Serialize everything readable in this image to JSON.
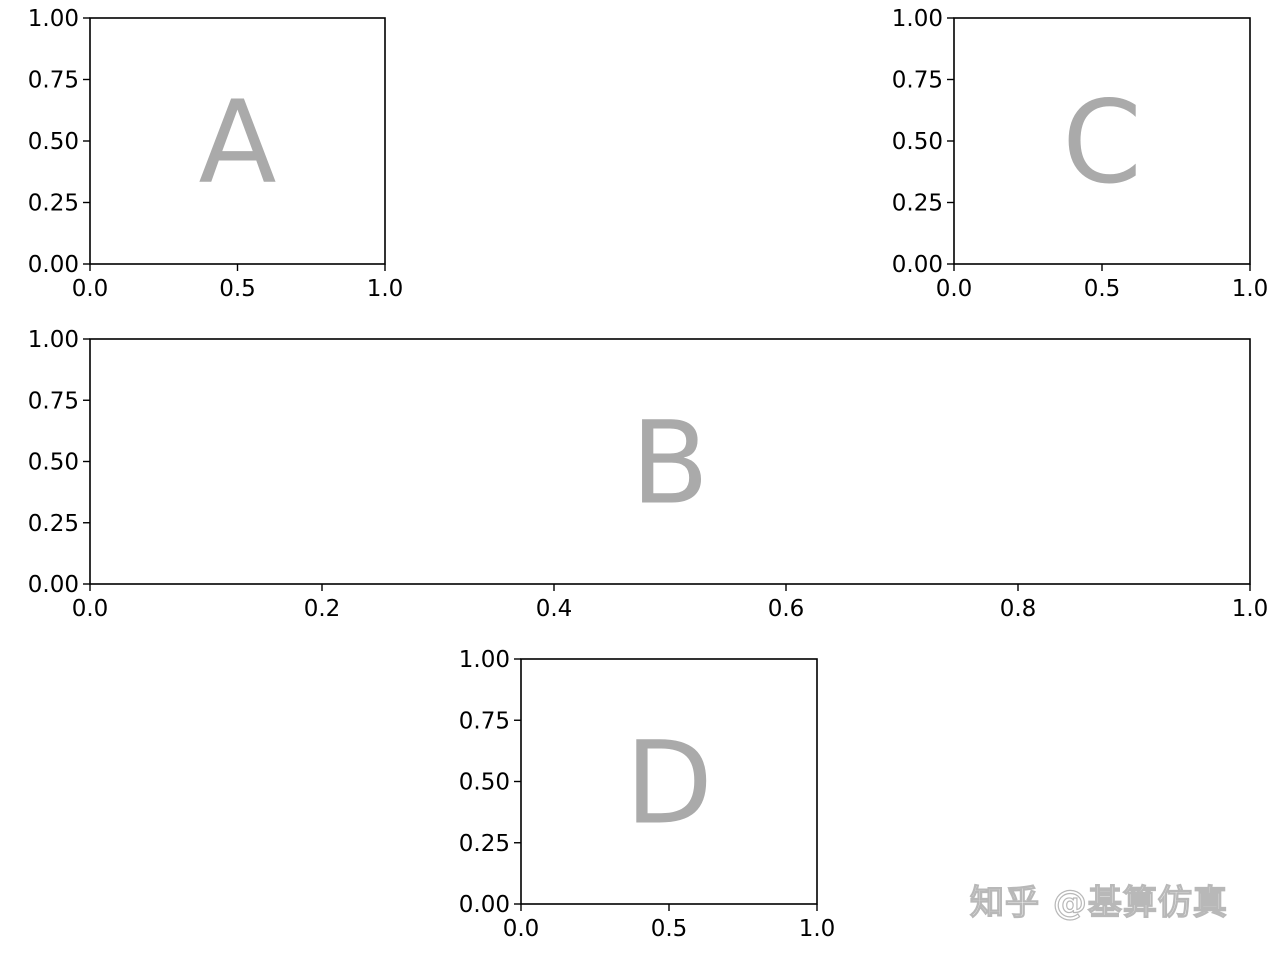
{
  "watermark": "知乎 @基算仿真",
  "colors": {
    "axis": "#000000",
    "panel_letter": "#aaaaaa",
    "background": "#ffffff"
  },
  "chart_data": [
    {
      "type": "blank",
      "panel_label": "A",
      "xlim": [
        0.0,
        1.0
      ],
      "ylim": [
        0.0,
        1.0
      ],
      "xticks": [
        "0.0",
        "0.5",
        "1.0"
      ],
      "yticks": [
        "0.00",
        "0.25",
        "0.50",
        "0.75",
        "1.00"
      ],
      "grid": false
    },
    {
      "type": "blank",
      "panel_label": "C",
      "xlim": [
        0.0,
        1.0
      ],
      "ylim": [
        0.0,
        1.0
      ],
      "xticks": [
        "0.0",
        "0.5",
        "1.0"
      ],
      "yticks": [
        "0.00",
        "0.25",
        "0.50",
        "0.75",
        "1.00"
      ],
      "grid": false
    },
    {
      "type": "blank",
      "panel_label": "B",
      "xlim": [
        0.0,
        1.0
      ],
      "ylim": [
        0.0,
        1.0
      ],
      "xticks": [
        "0.0",
        "0.2",
        "0.4",
        "0.6",
        "0.8",
        "1.0"
      ],
      "yticks": [
        "0.00",
        "0.25",
        "0.50",
        "0.75",
        "1.00"
      ],
      "grid": false
    },
    {
      "type": "blank",
      "panel_label": "D",
      "xlim": [
        0.0,
        1.0
      ],
      "ylim": [
        0.0,
        1.0
      ],
      "xticks": [
        "0.0",
        "0.5",
        "1.0"
      ],
      "yticks": [
        "0.00",
        "0.25",
        "0.50",
        "0.75",
        "1.00"
      ],
      "grid": false
    }
  ]
}
